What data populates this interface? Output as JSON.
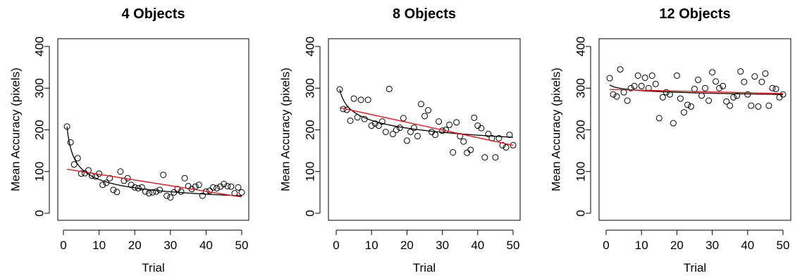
{
  "chart_data": [
    {
      "type": "scatter",
      "title": "4 Objects",
      "xlabel": "Trial",
      "ylabel": "Mean Accuracy (pixels)",
      "xlim": [
        0,
        50
      ],
      "ylim": [
        0,
        400
      ],
      "xticks": [
        0,
        10,
        20,
        30,
        40,
        50
      ],
      "yticks": [
        0,
        100,
        200,
        300,
        400
      ],
      "grid": false,
      "x": [
        1,
        2,
        3,
        4,
        5,
        6,
        7,
        8,
        9,
        10,
        11,
        12,
        13,
        14,
        15,
        16,
        17,
        18,
        19,
        20,
        21,
        22,
        23,
        24,
        25,
        26,
        27,
        28,
        29,
        30,
        31,
        32,
        33,
        34,
        35,
        36,
        37,
        38,
        39,
        40,
        41,
        42,
        43,
        44,
        45,
        46,
        47,
        48,
        49,
        50
      ],
      "y": [
        208,
        170,
        117,
        132,
        95,
        96,
        103,
        90,
        88,
        95,
        68,
        73,
        84,
        56,
        51,
        100,
        78,
        84,
        68,
        62,
        60,
        62,
        52,
        48,
        50,
        52,
        56,
        92,
        42,
        38,
        50,
        58,
        52,
        84,
        65,
        58,
        64,
        68,
        42,
        52,
        54,
        62,
        60,
        64,
        70,
        65,
        64,
        48,
        62,
        50
      ],
      "curve_fit": {
        "color": "#000000",
        "model": "power",
        "a": 208,
        "b": 0.41
      },
      "linear_fit": {
        "color": "#e41a1c",
        "intercept": 107,
        "slope": -1.36
      }
    },
    {
      "type": "scatter",
      "title": "8 Objects",
      "xlabel": "Trial",
      "ylabel": "Mean Accuracy (pixels)",
      "xlim": [
        0,
        50
      ],
      "ylim": [
        0,
        400
      ],
      "xticks": [
        0,
        10,
        20,
        30,
        40,
        50
      ],
      "yticks": [
        0,
        100,
        200,
        300,
        400
      ],
      "grid": false,
      "x": [
        1,
        2,
        3,
        4,
        5,
        6,
        7,
        8,
        9,
        10,
        11,
        12,
        13,
        14,
        15,
        16,
        17,
        18,
        19,
        20,
        21,
        22,
        23,
        24,
        25,
        26,
        27,
        28,
        29,
        30,
        31,
        32,
        33,
        34,
        35,
        36,
        37,
        38,
        39,
        40,
        41,
        42,
        43,
        44,
        45,
        46,
        47,
        48,
        49,
        50
      ],
      "y": [
        297,
        250,
        248,
        222,
        275,
        230,
        272,
        226,
        272,
        210,
        215,
        210,
        220,
        195,
        298,
        190,
        200,
        205,
        228,
        174,
        195,
        205,
        185,
        262,
        233,
        247,
        195,
        188,
        220,
        198,
        200,
        212,
        146,
        218,
        185,
        172,
        145,
        152,
        229,
        210,
        204,
        134,
        190,
        180,
        134,
        180,
        163,
        158,
        188,
        163
      ],
      "curve_fit": {
        "color": "#000000",
        "model": "power",
        "a": 297,
        "b": 0.125
      },
      "linear_fit": {
        "color": "#e41a1c",
        "intercept": 255,
        "slope": -1.84
      }
    },
    {
      "type": "scatter",
      "title": "12 Objects",
      "xlabel": "Trial",
      "ylabel": "Mean Accuracy (pixels)",
      "xlim": [
        0,
        50
      ],
      "ylim": [
        0,
        400
      ],
      "xticks": [
        0,
        10,
        20,
        30,
        40,
        50
      ],
      "yticks": [
        0,
        100,
        200,
        300,
        400
      ],
      "grid": false,
      "x": [
        1,
        2,
        3,
        4,
        5,
        6,
        7,
        8,
        9,
        10,
        11,
        12,
        13,
        14,
        15,
        16,
        17,
        18,
        19,
        20,
        21,
        22,
        23,
        24,
        25,
        26,
        27,
        28,
        29,
        30,
        31,
        32,
        33,
        34,
        35,
        36,
        37,
        38,
        39,
        40,
        41,
        42,
        43,
        44,
        45,
        46,
        47,
        48,
        49,
        50
      ],
      "y": [
        324,
        285,
        280,
        345,
        290,
        270,
        300,
        305,
        330,
        305,
        325,
        300,
        330,
        310,
        228,
        278,
        290,
        285,
        216,
        330,
        275,
        242,
        260,
        256,
        298,
        320,
        282,
        300,
        270,
        338,
        316,
        300,
        305,
        268,
        258,
        278,
        282,
        340,
        315,
        285,
        258,
        328,
        256,
        315,
        335,
        258,
        300,
        298,
        278,
        285
      ],
      "curve_fit": {
        "color": "#000000",
        "model": "power",
        "a": 308,
        "b": 0.02
      },
      "linear_fit": {
        "color": "#e41a1c",
        "intercept": 297,
        "slope": -0.2
      }
    }
  ]
}
